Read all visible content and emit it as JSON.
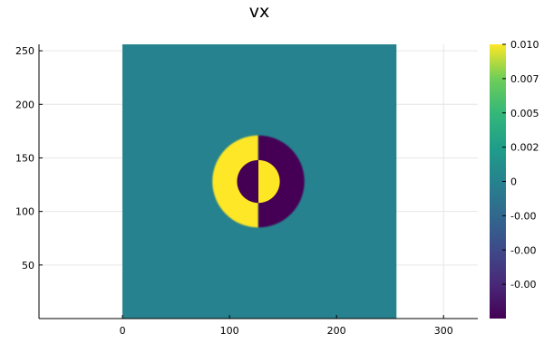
{
  "chart_data": {
    "type": "heatmap",
    "title": "vx",
    "xlabel": "",
    "ylabel": "",
    "xlim": [
      -78,
      332
    ],
    "ylim": [
      0,
      256
    ],
    "x_ticks": [
      0,
      100,
      200,
      300
    ],
    "y_ticks": [
      50,
      100,
      150,
      200,
      250
    ],
    "x_tick_labels": [
      "0",
      "100",
      "200",
      "300"
    ],
    "y_tick_labels": [
      "50",
      "100",
      "150",
      "200",
      "250"
    ],
    "grid": true,
    "image_extent": {
      "x": [
        0,
        256
      ],
      "y": [
        0,
        256
      ]
    },
    "background_value": 0,
    "features": [
      {
        "shape": "half-disk",
        "side": "left",
        "center": [
          127,
          128
        ],
        "radius": 43,
        "value": 0.01
      },
      {
        "shape": "half-disk",
        "side": "right",
        "center": [
          127,
          128
        ],
        "radius": 43,
        "value": -0.01
      },
      {
        "shape": "half-disk",
        "side": "left",
        "center": [
          127,
          128
        ],
        "radius": 20,
        "value": -0.01
      },
      {
        "shape": "half-disk",
        "side": "right",
        "center": [
          127,
          128
        ],
        "radius": 20,
        "value": 0.01
      }
    ],
    "colorbar": {
      "colormap": "viridis",
      "range": [
        -0.01,
        0.01
      ],
      "ticks": [
        0.01,
        0.0075,
        0.005,
        0.0025,
        0,
        -0.0025,
        -0.005,
        -0.0075
      ],
      "tick_labels": [
        "0.010",
        "0.007",
        "0.005",
        "0.002",
        "0",
        "-0.00",
        "-0.00",
        "-0.00"
      ]
    }
  }
}
